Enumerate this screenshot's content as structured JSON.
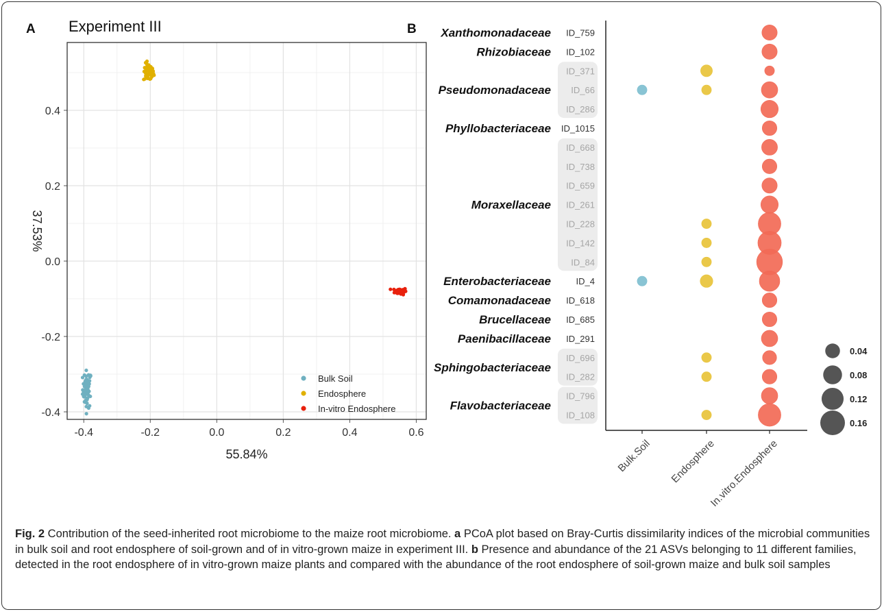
{
  "figure": {
    "caption": {
      "label": "Fig. 2",
      "intro": " Contribution of the seed-inherited root microbiome to the maize root microbiome. ",
      "a_letter": "a",
      "a_text": " PCoA plot based on Bray-Curtis dissimilarity indices of the microbial communities in bulk soil and root endosphere of soil-grown and of in vitro-grown maize in experiment III. ",
      "b_letter": "b",
      "b_text": " Presence and abundance of the 21 ASVs belonging to 11 different families, detected in the root endosphere of in vitro-grown maize plants and compared with the abundance of the root endosphere of soil-grown maize and bulk soil samples"
    }
  },
  "chart_data": [
    {
      "panel": "A",
      "type": "scatter",
      "title": "Experiment III",
      "xlabel": "55.84%",
      "ylabel": "37.53%",
      "xlim": [
        -0.45,
        0.63
      ],
      "ylim": [
        -0.42,
        0.58
      ],
      "xticks": [
        -0.4,
        -0.2,
        0.0,
        0.2,
        0.4,
        0.6
      ],
      "yticks": [
        -0.4,
        -0.2,
        0.0,
        0.2,
        0.4
      ],
      "grid": true,
      "legend_position": "right",
      "series": [
        {
          "name": "Bulk Soil",
          "color": "#6fb0c0",
          "center": [
            -0.39,
            -0.34
          ],
          "spread": [
            0.012,
            0.045
          ]
        },
        {
          "name": "Endosphere",
          "color": "#e0b000",
          "center": [
            -0.205,
            0.5
          ],
          "spread": [
            0.014,
            0.022
          ]
        },
        {
          "name": "In-vitro Endosphere",
          "color": "#e8200c",
          "center": [
            0.553,
            -0.08
          ],
          "spread": [
            0.016,
            0.008
          ]
        }
      ]
    },
    {
      "panel": "B",
      "type": "scatter",
      "subtype": "bubble",
      "categories": [
        "Bulk.Soil",
        "Endosphere",
        "In.vitro.Endosphere"
      ],
      "category_colors": [
        "#7fbfd0",
        "#e8c33a",
        "#f26a56"
      ],
      "size_legend": [
        0.04,
        0.08,
        0.12,
        0.16
      ],
      "families": [
        {
          "name": "Xanthomonadaceae",
          "asvs": [
            "ID_759"
          ]
        },
        {
          "name": "Rhizobiaceae",
          "asvs": [
            "ID_102"
          ]
        },
        {
          "name": "Pseudomonadaceae",
          "asvs": [
            "ID_371",
            "ID_66",
            "ID_286"
          ]
        },
        {
          "name": "Phyllobacteriaceae",
          "asvs": [
            "ID_1015"
          ]
        },
        {
          "name": "Moraxellaceae",
          "asvs": [
            "ID_668",
            "ID_738",
            "ID_659",
            "ID_261",
            "ID_228",
            "ID_142",
            "ID_84"
          ]
        },
        {
          "name": "Enterobacteriaceae",
          "asvs": [
            "ID_4"
          ]
        },
        {
          "name": "Comamonadaceae",
          "asvs": [
            "ID_618"
          ]
        },
        {
          "name": "Brucellaceae",
          "asvs": [
            "ID_685"
          ]
        },
        {
          "name": "Paenibacillaceae",
          "asvs": [
            "ID_291"
          ]
        },
        {
          "name": "Sphingobacteriaceae",
          "asvs": [
            "ID_696",
            "ID_282"
          ]
        },
        {
          "name": "Flavobacteriaceae",
          "asvs": [
            "ID_796",
            "ID_108"
          ]
        }
      ],
      "rows": [
        {
          "id": "ID_759",
          "values": [
            0,
            0,
            0.045
          ],
          "muted": false
        },
        {
          "id": "ID_102",
          "values": [
            0,
            0,
            0.045
          ],
          "muted": false
        },
        {
          "id": "ID_371",
          "values": [
            0,
            0.02,
            0.01
          ],
          "muted": true
        },
        {
          "id": "ID_66",
          "values": [
            0.01,
            0.01,
            0.055
          ],
          "muted": true
        },
        {
          "id": "ID_286",
          "values": [
            0,
            0,
            0.065
          ],
          "muted": true
        },
        {
          "id": "ID_1015",
          "values": [
            0,
            0,
            0.04
          ],
          "muted": false
        },
        {
          "id": "ID_668",
          "values": [
            0,
            0,
            0.05
          ],
          "muted": true
        },
        {
          "id": "ID_738",
          "values": [
            0,
            0,
            0.04
          ],
          "muted": true
        },
        {
          "id": "ID_659",
          "values": [
            0,
            0,
            0.045
          ],
          "muted": true
        },
        {
          "id": "ID_261",
          "values": [
            0,
            0,
            0.065
          ],
          "muted": true
        },
        {
          "id": "ID_228",
          "values": [
            0,
            0.01,
            0.13
          ],
          "muted": true
        },
        {
          "id": "ID_142",
          "values": [
            0,
            0.01,
            0.14
          ],
          "muted": true
        },
        {
          "id": "ID_84",
          "values": [
            0,
            0.01,
            0.18
          ],
          "muted": true
        },
        {
          "id": "ID_4",
          "values": [
            0.01,
            0.025,
            0.1
          ],
          "muted": false
        },
        {
          "id": "ID_618",
          "values": [
            0,
            0,
            0.04
          ],
          "muted": false
        },
        {
          "id": "ID_685",
          "values": [
            0,
            0,
            0.04
          ],
          "muted": false
        },
        {
          "id": "ID_291",
          "values": [
            0,
            0,
            0.055
          ],
          "muted": false
        },
        {
          "id": "ID_696",
          "values": [
            0,
            0.01,
            0.035
          ],
          "muted": true
        },
        {
          "id": "ID_282",
          "values": [
            0,
            0.01,
            0.04
          ],
          "muted": true
        },
        {
          "id": "ID_796",
          "values": [
            0,
            0,
            0.055
          ],
          "muted": true
        },
        {
          "id": "ID_108",
          "values": [
            0,
            0.01,
            0.13
          ],
          "muted": true
        }
      ]
    }
  ]
}
